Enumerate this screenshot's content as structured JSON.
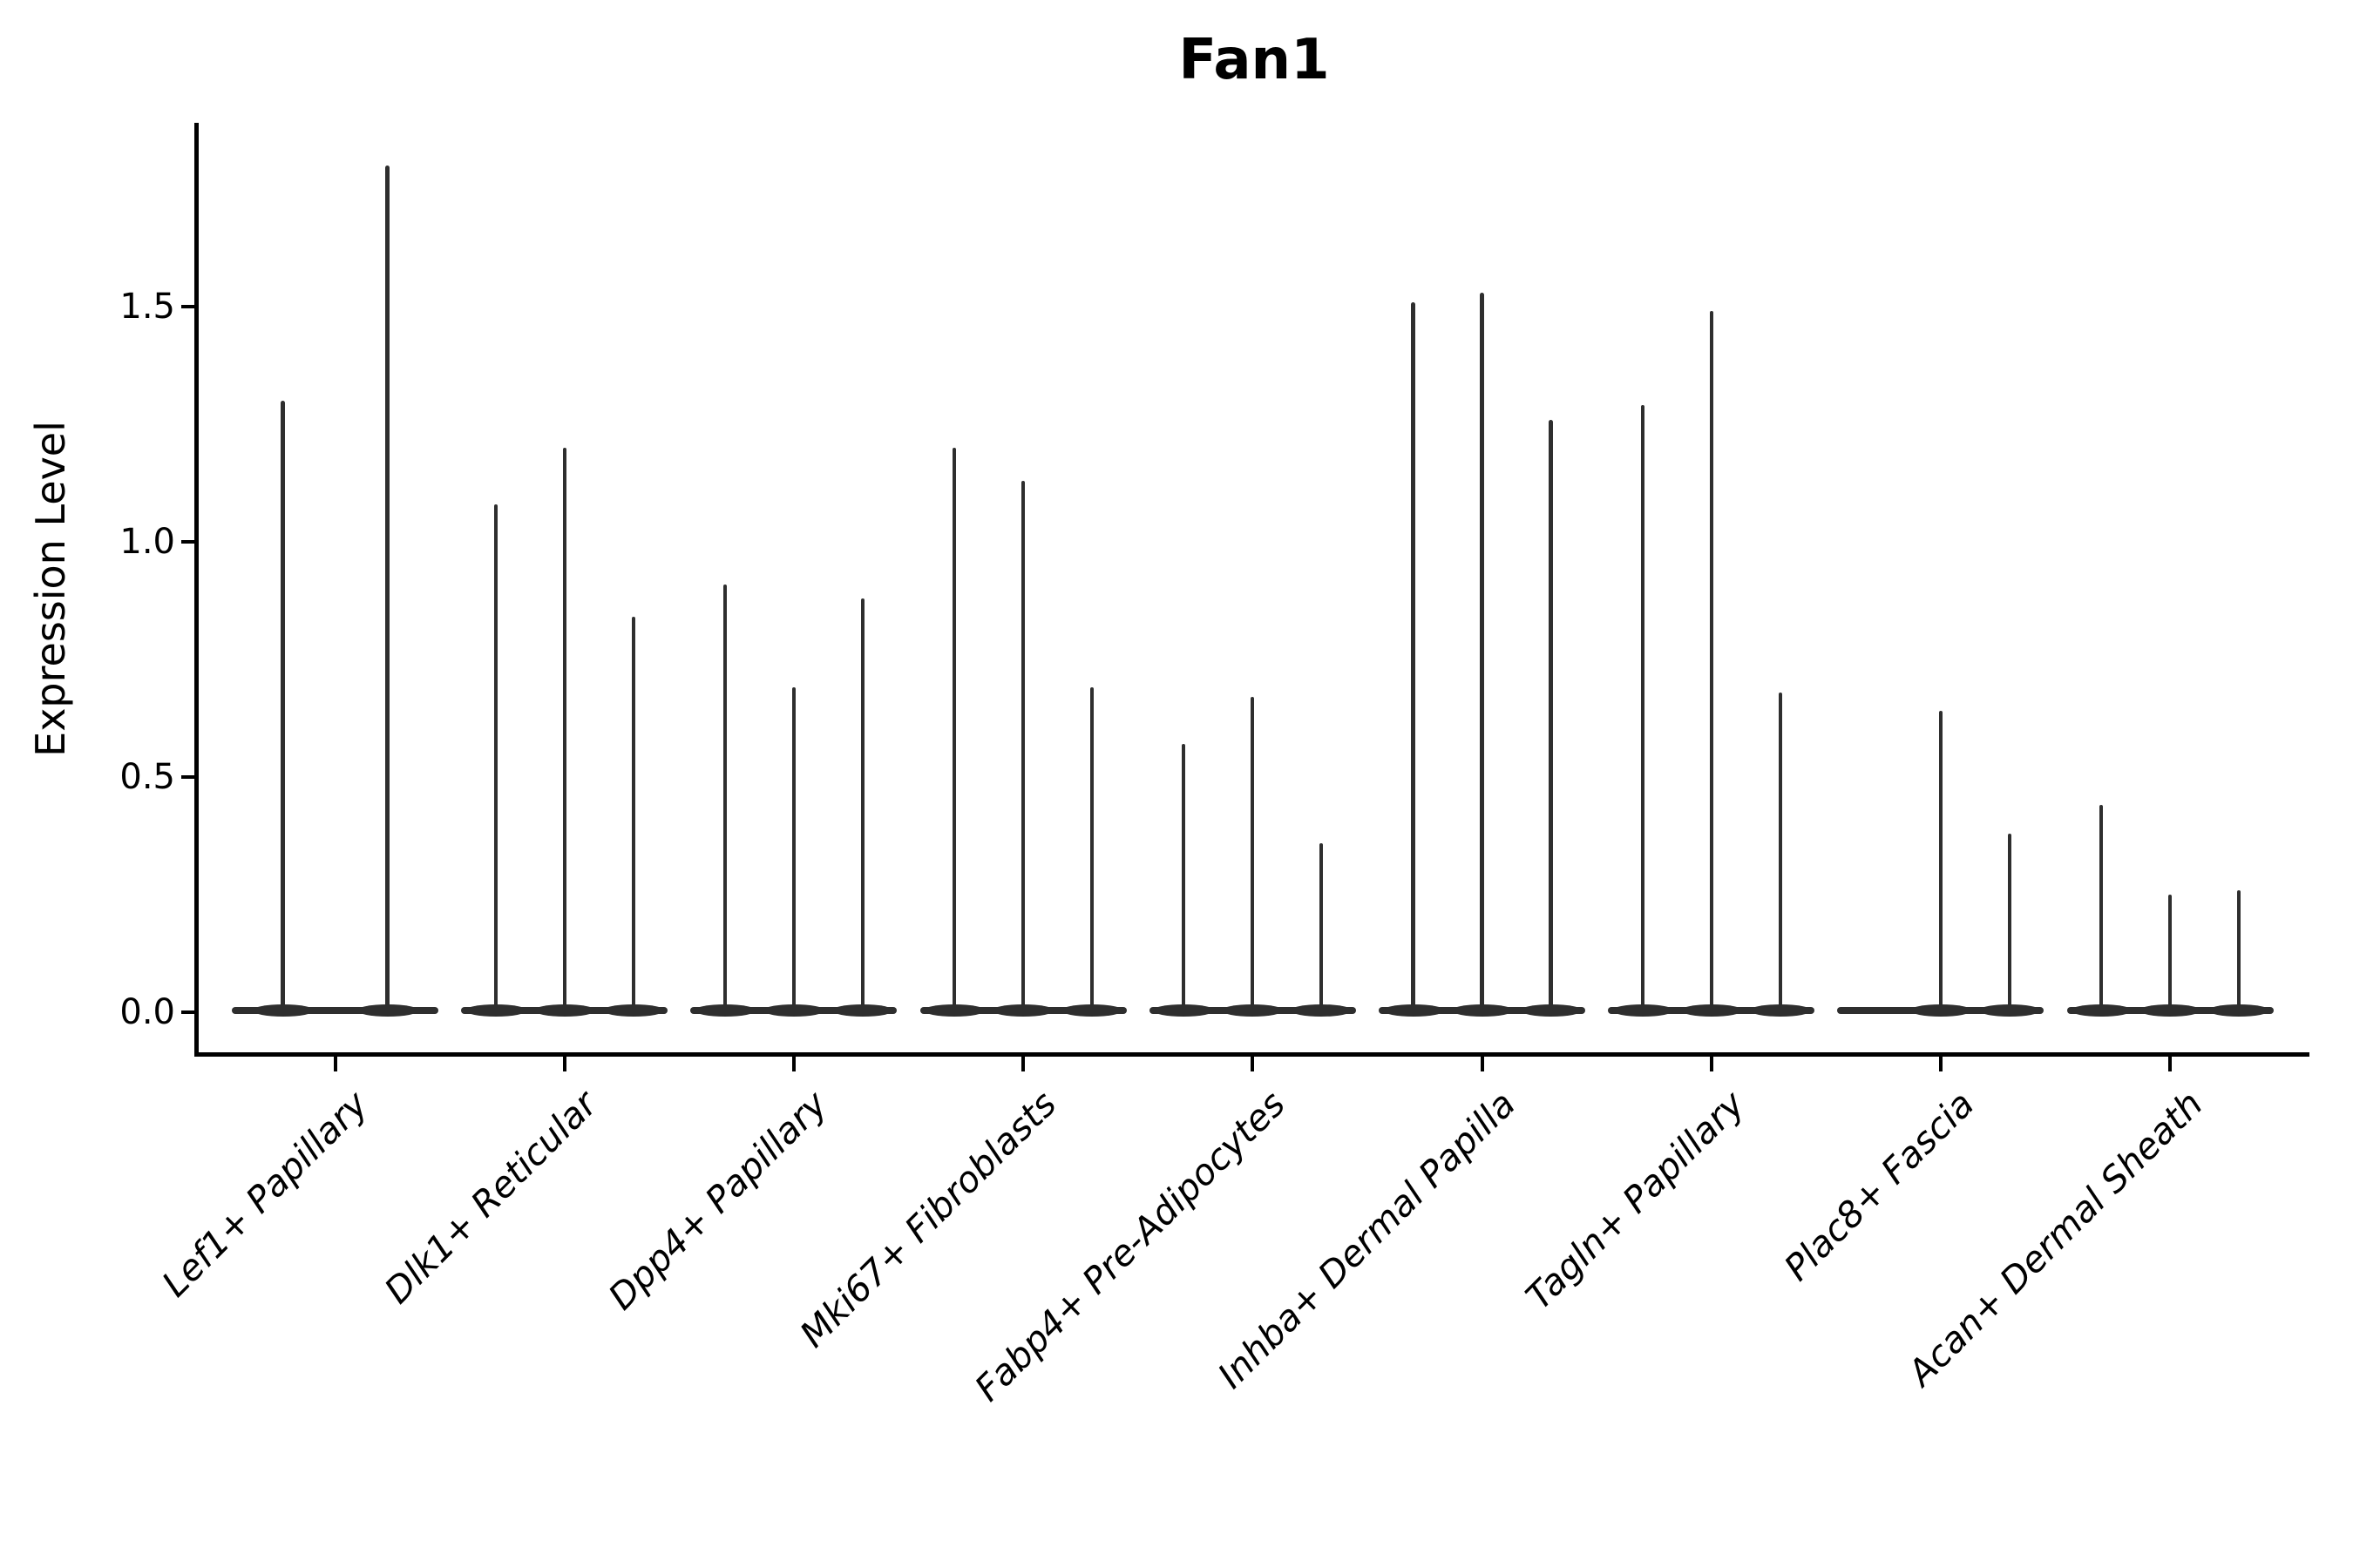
{
  "title": "Fan1",
  "ylabel": "Expression Level",
  "colors": {
    "violin": "#2e2e2e",
    "axis": "#000000",
    "text": "#000000",
    "background": "#ffffff"
  },
  "chart_data": {
    "type": "violin",
    "title": "Fan1",
    "xlabel": "",
    "ylabel": "Expression Level",
    "ylim": [
      0,
      1.89
    ],
    "yticks": [
      0.0,
      0.5,
      1.0,
      1.5
    ],
    "ytick_labels": [
      "0.0",
      "0.5",
      "1.0",
      "1.5"
    ],
    "grid": false,
    "legend": false,
    "x_label_style": "italic, rotated 45 degrees, right-anchored",
    "description": "Violin plot of Fan1 expression; each category shows thin spike violins (max expression) with flat bases at 0",
    "categories": [
      "Lef1+ Papillary",
      "Dlk1+ Reticular",
      "Dpp4+ Papillary",
      "Mki67+ Fibroblasts",
      "Fabp4+ Pre-Adipocytes",
      "Inhba+ Dermal Papilla",
      "Tagln+ Papillary",
      "Plac8+ Fascia",
      "Acan+ Dermal Sheath"
    ],
    "series": [
      {
        "category": "Lef1+ Papillary",
        "violins": [
          {
            "offset": -60,
            "max": 1.3
          },
          {
            "offset": 60,
            "max": 1.8
          }
        ]
      },
      {
        "category": "Dlk1+ Reticular",
        "violins": [
          {
            "offset": -79,
            "max": 1.08
          },
          {
            "offset": 0,
            "max": 1.2
          },
          {
            "offset": 79,
            "max": 0.84
          }
        ]
      },
      {
        "category": "Dpp4+ Papillary",
        "violins": [
          {
            "offset": -79,
            "max": 0.91
          },
          {
            "offset": 0,
            "max": 0.69
          },
          {
            "offset": 79,
            "max": 0.88
          }
        ]
      },
      {
        "category": "Mki67+ Fibroblasts",
        "violins": [
          {
            "offset": -79,
            "max": 1.2
          },
          {
            "offset": 0,
            "max": 1.13
          },
          {
            "offset": 79,
            "max": 0.69
          }
        ]
      },
      {
        "category": "Fabp4+ Pre-Adipocytes",
        "violins": [
          {
            "offset": -79,
            "max": 0.57
          },
          {
            "offset": 0,
            "max": 0.67
          },
          {
            "offset": 79,
            "max": 0.36
          }
        ]
      },
      {
        "category": "Inhba+ Dermal Papilla",
        "violins": [
          {
            "offset": -79,
            "max": 1.51
          },
          {
            "offset": 0,
            "max": 1.53
          },
          {
            "offset": 79,
            "max": 1.26
          }
        ]
      },
      {
        "category": "Tagln+ Papillary",
        "violins": [
          {
            "offset": -79,
            "max": 1.29
          },
          {
            "offset": 0,
            "max": 1.49
          },
          {
            "offset": 79,
            "max": 0.68
          }
        ]
      },
      {
        "category": "Plac8+ Fascia",
        "violins": [
          {
            "offset": -79,
            "max": 0.0
          },
          {
            "offset": 0,
            "max": 0.64
          },
          {
            "offset": 79,
            "max": 0.38
          }
        ]
      },
      {
        "category": "Acan+ Dermal Sheath",
        "violins": [
          {
            "offset": -79,
            "max": 0.44
          },
          {
            "offset": 0,
            "max": 0.25
          },
          {
            "offset": 79,
            "max": 0.26
          }
        ]
      }
    ]
  }
}
